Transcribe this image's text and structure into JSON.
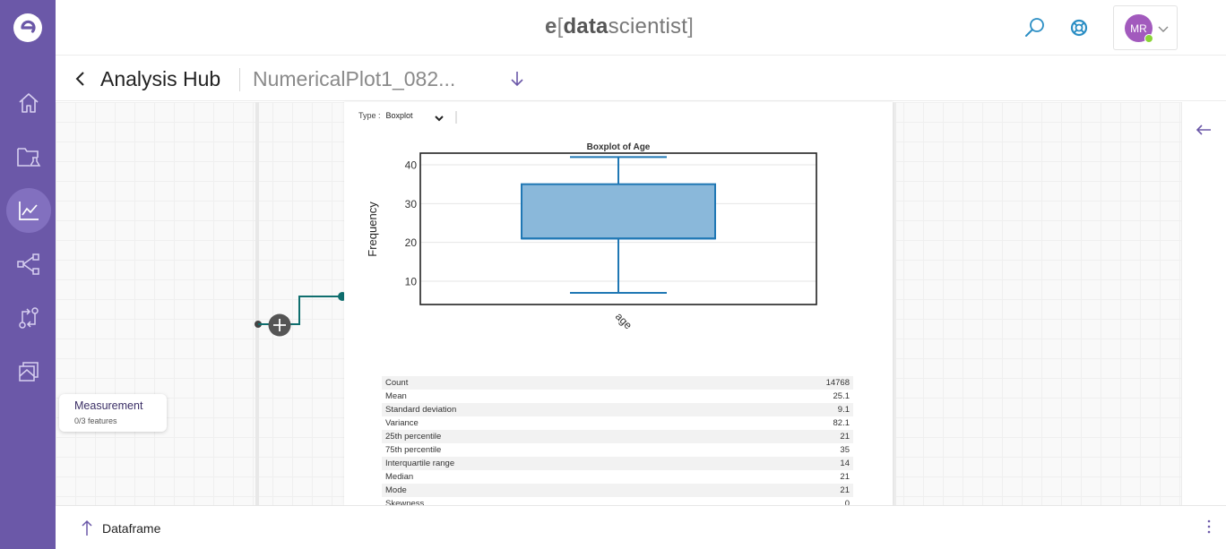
{
  "app": {
    "brand_e": "e",
    "brand_open": "[",
    "brand_data": "data",
    "brand_scientist": "scientist",
    "brand_close": "]",
    "user_initials": "MR",
    "accent": "#6b58a8",
    "avatar_color": "#a25abd",
    "status_color": "#8bd437"
  },
  "sidebar": {
    "items": [
      {
        "name": "home-icon"
      },
      {
        "name": "project-folder-icon"
      },
      {
        "name": "analysis-chart-icon",
        "active": true
      },
      {
        "name": "workflow-graph-icon"
      },
      {
        "name": "git-compare-icon"
      },
      {
        "name": "layers-icon"
      }
    ]
  },
  "header": {
    "hub_title": "Analysis Hub",
    "doc_title": "NumericalPlot1_082..."
  },
  "node": {
    "title": "Measurement",
    "subtitle": "0/3 features"
  },
  "panel": {
    "type_label": "Type :",
    "type_value": "Boxplot"
  },
  "chart_data": {
    "type": "boxplot",
    "title": "Boxplot of Age",
    "xlabel": "",
    "ylabel": "Frequency",
    "categories": [
      "age"
    ],
    "ylim": [
      4,
      43
    ],
    "yticks": [
      10,
      20,
      30,
      40
    ],
    "box": {
      "min": 7,
      "q1": 21,
      "median": 21,
      "q3": 35,
      "max": 42
    },
    "fill": "#8ab8da",
    "stroke": "#1f77b4",
    "grid": true
  },
  "stats": [
    {
      "label": "Count",
      "value": "14768"
    },
    {
      "label": "Mean",
      "value": "25.1"
    },
    {
      "label": "Standard deviation",
      "value": "9.1"
    },
    {
      "label": "Variance",
      "value": "82.1"
    },
    {
      "label": "25th percentile",
      "value": "21"
    },
    {
      "label": "75th percentile",
      "value": "35"
    },
    {
      "label": "Interquartile range",
      "value": "14"
    },
    {
      "label": "Median",
      "value": "21"
    },
    {
      "label": "Mode",
      "value": "21"
    },
    {
      "label": "Skewness",
      "value": "0"
    }
  ],
  "footer": {
    "label": "Dataframe"
  }
}
